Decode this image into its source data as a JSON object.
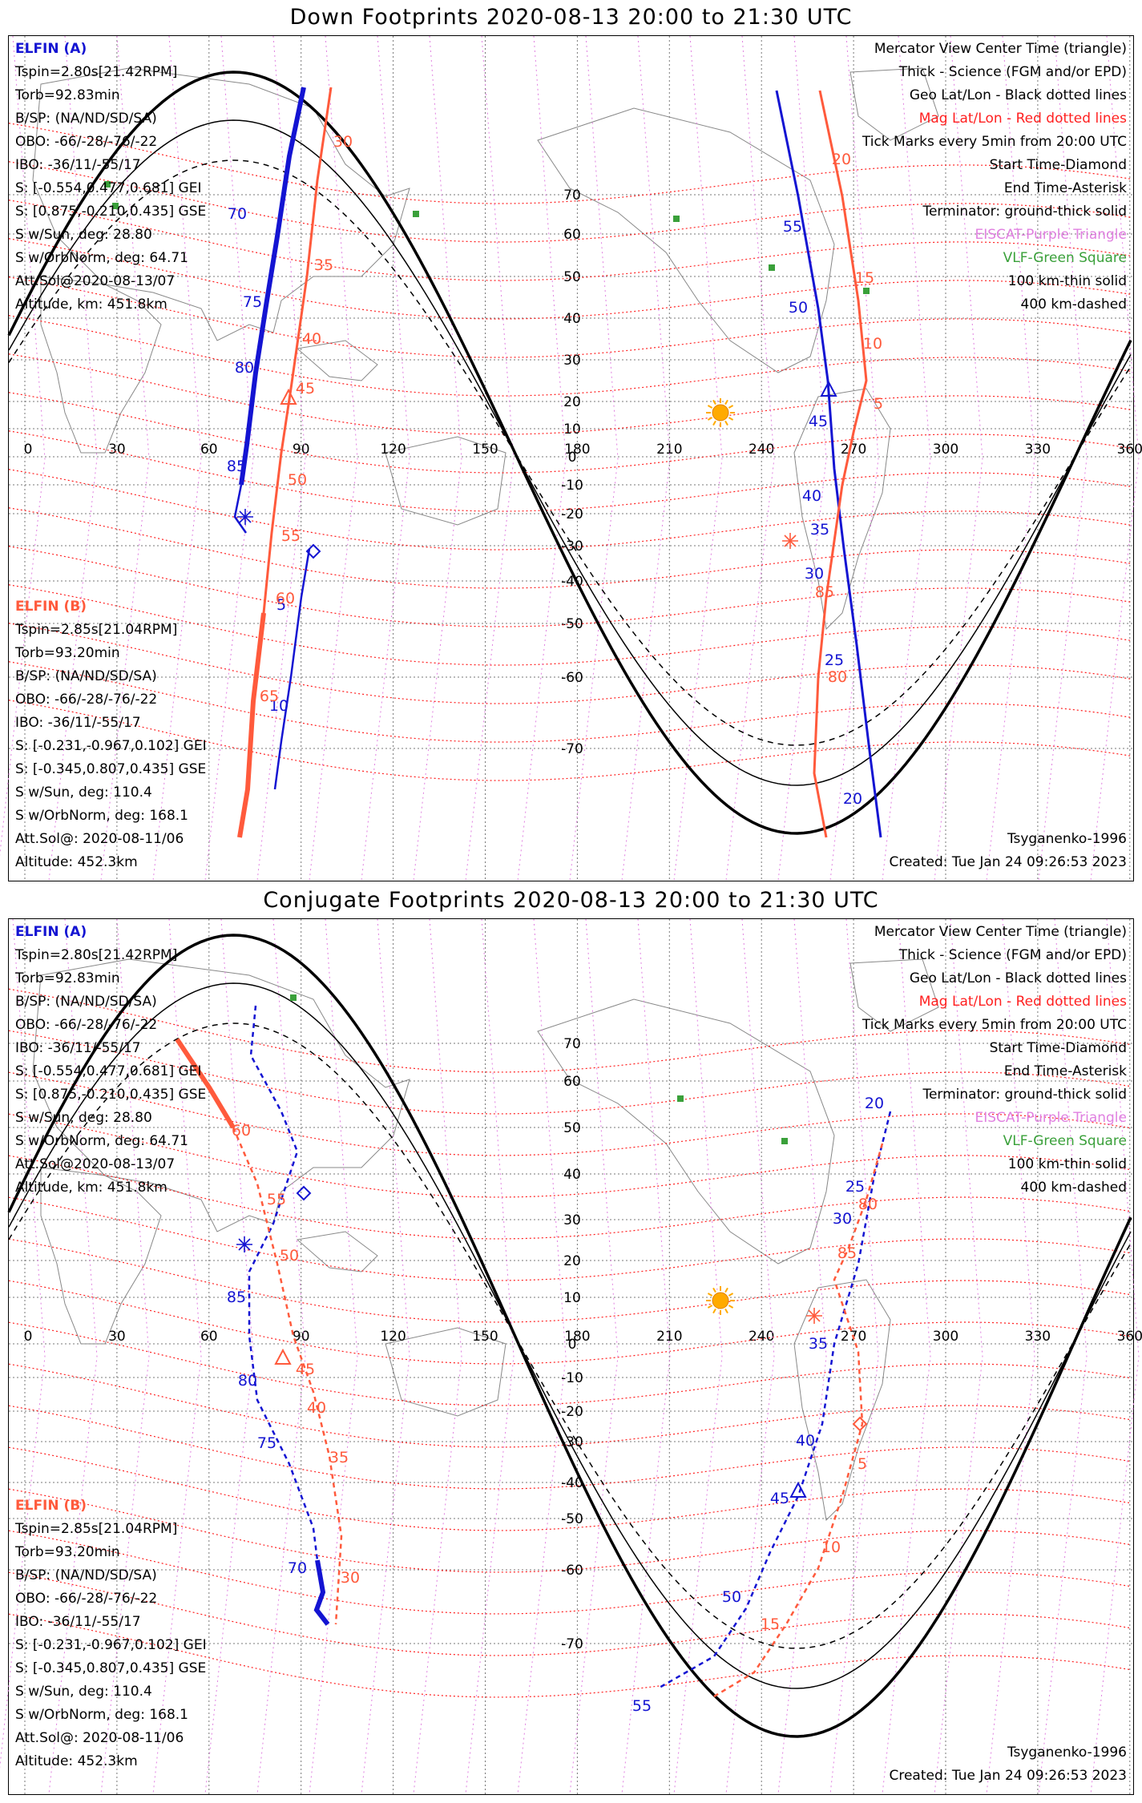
{
  "colors": {
    "elfin_a": "#1414d2",
    "elfin_b": "#ff5a3c",
    "mag_grid": "#ff2020",
    "geo_grid": "#555555",
    "meridian_mag": "#e080e0",
    "vlf": "#3aa03a",
    "sun": "#ffaa00"
  },
  "down": {
    "title": "Down Footprints 2020-08-13 20:00 to 21:30 UTC",
    "elfin_a": {
      "name": "ELFIN (A)",
      "lines": [
        "Tspin=2.80s[21.42RPM]",
        "Torb=92.83min",
        "B/SP: (NA/ND/SD/SA)",
        "OBO: -66/-28/-76/-22",
        "IBO: -36/11/-55/17",
        "S: [-0.554,0.477,0.681] GEI",
        "S: [0.875,-0.210,0.435] GSE",
        "S w/Sun, deg: 28.80",
        "S w/OrbNorm, deg: 64.71",
        "Att.Sol@2020-08-13/07",
        "Altitude, km: 451.8km"
      ]
    },
    "elfin_b": {
      "name": "ELFIN (B)",
      "lines": [
        "Tspin=2.85s[21.04RPM]",
        "Torb=93.20min",
        "B/SP: (NA/ND/SD/SA)",
        "OBO: -66/-28/-76/-22",
        "IBO: -36/11/-55/17",
        "S: [-0.231,-0.967,0.102] GEI",
        "S: [-0.345,0.807,0.435] GSE",
        "S w/Sun, deg: 110.4",
        "S w/OrbNorm, deg: 168.1",
        "Att.Sol@: 2020-08-11/06",
        "Altitude: 452.3km"
      ]
    },
    "legend": [
      "Mercator View Center Time (triangle)",
      "Thick - Science (FGM and/or EPD)",
      "Geo Lat/Lon - Black dotted lines",
      "Mag Lat/Lon - Red dotted lines",
      "Tick Marks every 5min from 20:00 UTC",
      "Start Time-Diamond",
      "End Time-Asterisk",
      "Terminator: ground-thick solid",
      "EISCAT-Purple Triangle",
      "VLF-Green Square",
      "100 km-thin solid",
      "400 km-dashed"
    ],
    "credit": "Tsyganenko-1996",
    "created": "Created: Tue Jan 24 09:26:53 2023",
    "lon_ticks": [
      "0",
      "30",
      "60",
      "90",
      "120",
      "150",
      "180",
      "210",
      "240",
      "270",
      "300",
      "330",
      "360"
    ],
    "lat_ticks": [
      "70",
      "60",
      "50",
      "40",
      "30",
      "20",
      "10",
      "0",
      "-10",
      "-20",
      "-30",
      "-40",
      "-50",
      "-60",
      "-70"
    ],
    "a_track_labels": [
      "70",
      "75",
      "80",
      "85",
      "5",
      "10",
      "55",
      "50",
      "45",
      "40",
      "35",
      "30",
      "25",
      "20"
    ],
    "b_track_labels": [
      "30",
      "35",
      "40",
      "45",
      "50",
      "55",
      "60",
      "65",
      "20",
      "15",
      "10",
      "5",
      "85",
      "80"
    ]
  },
  "conj": {
    "title": "Conjugate Footprints 2020-08-13 20:00 to 21:30 UTC",
    "elfin_a": {
      "name": "ELFIN (A)",
      "lines": [
        "Tspin=2.80s[21.42RPM]",
        "Torb=92.83min",
        "B/SP: (NA/ND/SD/SA)",
        "OBO: -66/-28/-76/-22",
        "IBO: -36/11/-55/17",
        "S: [-0.554,0.477,0.681] GEI",
        "S: [0.875,-0.210,0.435] GSE",
        "S w/Sun, deg: 28.80",
        "S w/OrbNorm, deg: 64.71",
        "Att.Sol@2020-08-13/07",
        "Altitude, km: 451.8km"
      ]
    },
    "elfin_b": {
      "name": "ELFIN (B)",
      "lines": [
        "Tspin=2.85s[21.04RPM]",
        "Torb=93.20min",
        "B/SP: (NA/ND/SD/SA)",
        "OBO: -66/-28/-76/-22",
        "IBO: -36/11/-55/17",
        "S: [-0.231,-0.967,0.102] GEI",
        "S: [-0.345,0.807,0.435] GSE",
        "S w/Sun, deg: 110.4",
        "S w/OrbNorm, deg: 168.1",
        "Att.Sol@: 2020-08-11/06",
        "Altitude: 452.3km"
      ]
    },
    "legend": [
      "Mercator View Center Time (triangle)",
      "Thick - Science (FGM and/or EPD)",
      "Geo Lat/Lon - Black dotted lines",
      "Mag Lat/Lon - Red dotted lines",
      "Tick Marks every 5min from 20:00 UTC",
      "Start Time-Diamond",
      "End Time-Asterisk",
      "Terminator: ground-thick solid",
      "EISCAT-Purple Triangle",
      "VLF-Green Square",
      "100 km-thin solid",
      "400 km-dashed"
    ],
    "credit": "Tsyganenko-1996",
    "created": "Created: Tue Jan 24 09:26:53 2023",
    "lon_ticks": [
      "0",
      "30",
      "60",
      "90",
      "120",
      "150",
      "180",
      "210",
      "240",
      "270",
      "300",
      "330",
      "360"
    ],
    "lat_ticks": [
      "70",
      "60",
      "50",
      "40",
      "30",
      "20",
      "10",
      "0",
      "-10",
      "-20",
      "-30",
      "-40",
      "-50",
      "-60",
      "-70"
    ],
    "a_track_labels": [
      "85",
      "80",
      "75",
      "70",
      "20",
      "25",
      "30",
      "35",
      "40",
      "45",
      "50",
      "55"
    ],
    "b_track_labels": [
      "60",
      "55",
      "50",
      "45",
      "40",
      "35",
      "30",
      "80",
      "85",
      "5",
      "10",
      "15"
    ]
  }
}
